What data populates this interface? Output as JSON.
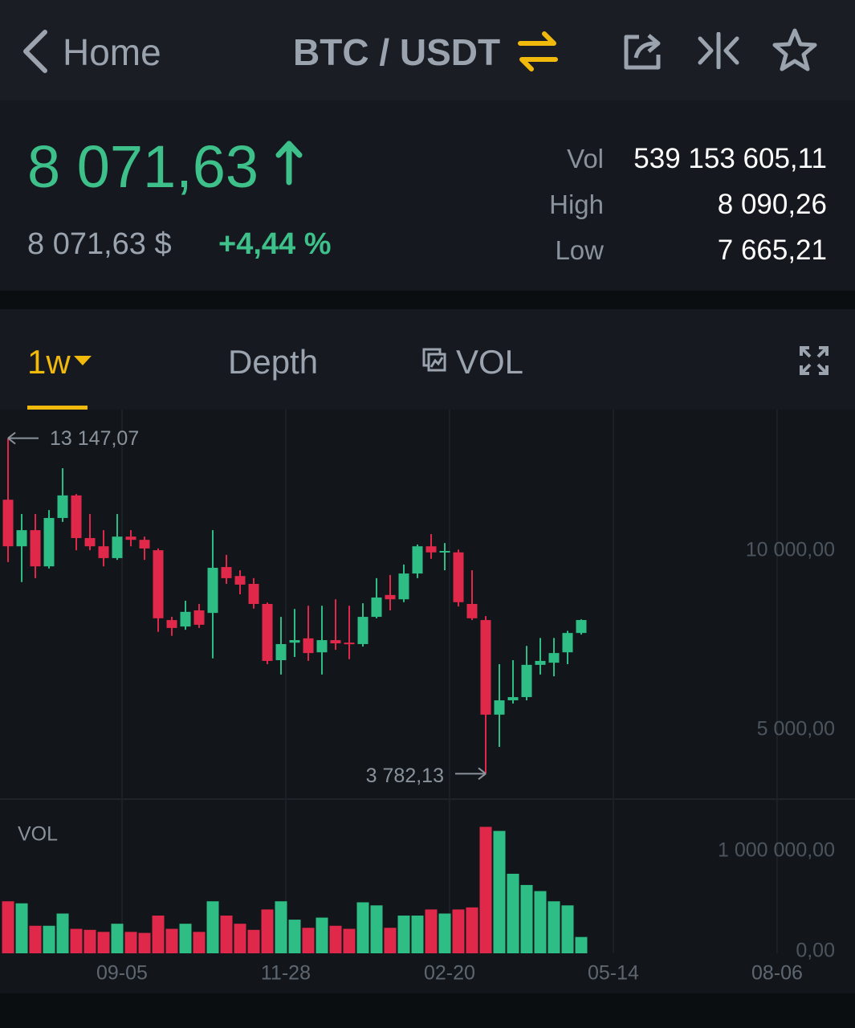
{
  "header": {
    "back": "Home",
    "pair": "BTC / USDT"
  },
  "ticker": {
    "price": "8 071,63",
    "price_usd": "8 071,63 $",
    "change": "+4,44 %",
    "stats": [
      {
        "label": "Vol",
        "value": "539 153 605,11"
      },
      {
        "label": "High",
        "value": "8 090,26"
      },
      {
        "label": "Low",
        "value": "7 665,21"
      }
    ]
  },
  "tabs": [
    "1w",
    "Depth",
    "VOL"
  ],
  "chart_data": {
    "type": "candlestick",
    "categories": [
      null,
      null,
      null,
      null,
      null,
      null,
      null,
      null,
      null,
      null,
      null,
      null,
      null,
      null,
      null,
      null,
      null,
      null,
      null,
      null,
      null,
      null,
      null,
      null,
      null,
      null,
      null,
      null,
      null,
      null,
      null,
      null,
      null,
      null,
      null,
      null,
      null,
      null,
      null,
      null,
      null,
      null,
      null
    ],
    "open": [
      11430,
      10130,
      10580,
      9570,
      10920,
      11550,
      10360,
      10130,
      9800,
      10400,
      10310,
      10020,
      8070,
      7890,
      8340,
      8270,
      9550,
      9300,
      9080,
      8520,
      6950,
      7440,
      7560,
      7170,
      7510,
      7440,
      7400,
      8160,
      8770,
      8650,
      9370,
      10130,
      9960,
      9960,
      8520,
      8070,
      5430,
      5830,
      5920,
      6820,
      6880,
      7170,
      7710
    ],
    "high": [
      13147.07,
      11030,
      11030,
      11140,
      12310,
      11590,
      11030,
      10580,
      11030,
      10580,
      10400,
      10070,
      8160,
      8610,
      8520,
      10580,
      9890,
      9460,
      9240,
      8560,
      8160,
      8380,
      8470,
      8470,
      8650,
      8470,
      8540,
      9240,
      9330,
      9620,
      10180,
      10470,
      10220,
      10040,
      9460,
      8180,
      6840,
      6950,
      7350,
      7570,
      7570,
      7770,
      8090.26
    ],
    "low": [
      9690,
      9130,
      9240,
      9510,
      10810,
      10020,
      10020,
      9570,
      9750,
      10130,
      9750,
      7740,
      7630,
      7800,
      7850,
      7000,
      9080,
      8790,
      8390,
      6840,
      6550,
      7040,
      6930,
      6550,
      7240,
      6980,
      7330,
      8120,
      8340,
      8570,
      9240,
      9780,
      9460,
      8450,
      8070,
      3782.13,
      4530,
      5740,
      5830,
      6550,
      6500,
      6840,
      7665.21
    ],
    "close": [
      10130,
      10580,
      9570,
      10920,
      11550,
      10360,
      10130,
      9800,
      10400,
      10310,
      10070,
      8120,
      7850,
      8300,
      7940,
      9530,
      9240,
      9060,
      8520,
      6930,
      7400,
      7510,
      7150,
      7510,
      7420,
      7400,
      8160,
      8700,
      8650,
      9370,
      10130,
      9960,
      10000,
      8570,
      8120,
      5430,
      5830,
      5920,
      6820,
      6930,
      7150,
      7710,
      8071.63
    ],
    "volume": [
      510000,
      490000,
      270000,
      270000,
      390000,
      240000,
      230000,
      210000,
      290000,
      210000,
      200000,
      370000,
      240000,
      290000,
      210000,
      510000,
      370000,
      290000,
      230000,
      430000,
      510000,
      330000,
      250000,
      350000,
      270000,
      240000,
      500000,
      470000,
      250000,
      370000,
      370000,
      430000,
      390000,
      430000,
      450000,
      1240000,
      1200000,
      780000,
      670000,
      610000,
      510000,
      470000,
      160000
    ],
    "up_color": "#2ebd85",
    "down_color": "#e0294a",
    "xlim": [
      -0.59,
      62.06
    ],
    "xticks": [
      {
        "value": 8.35,
        "label": "09-05"
      },
      {
        "value": 20.35,
        "label": "11-28"
      },
      {
        "value": 32.35,
        "label": "02-20"
      },
      {
        "value": 44.35,
        "label": "05-14"
      },
      {
        "value": 56.35,
        "label": "08-06"
      }
    ],
    "ylim": [
      3072,
      13901
    ],
    "yticks": [
      {
        "value": 10000,
        "label": "10 000,00"
      },
      {
        "value": 5000,
        "label": "5 000,00"
      }
    ],
    "volume_label": "VOL",
    "volume_ylim": [
      0,
      1512000
    ],
    "volume_yticks": [
      {
        "value": 1000000,
        "label": "1 000 000,00"
      },
      {
        "value": 0,
        "label": "0,00"
      }
    ],
    "annotations": [
      {
        "text": "13 147,07"
      },
      {
        "text": "3 782,13"
      }
    ]
  }
}
